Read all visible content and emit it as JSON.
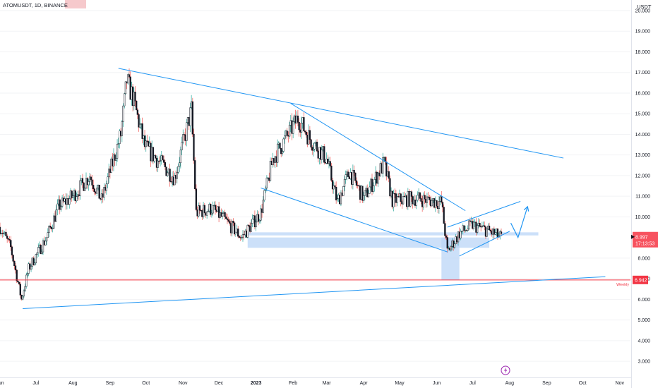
{
  "header": {
    "symbol": "ATOMUSDT",
    "interval": "1D",
    "exchange": "BINANCE",
    "title": "ATOMUSDT, 1D, BINANCE"
  },
  "price_axis": {
    "unit": "USDT",
    "ticks": [
      "20.000",
      "19.000",
      "18.000",
      "17.000",
      "16.000",
      "15.000",
      "14.000",
      "13.000",
      "12.000",
      "11.000",
      "10.000",
      "8.000",
      "7.000",
      "6.000",
      "5.000",
      "4.000",
      "3.000"
    ]
  },
  "time_axis": {
    "ticks": [
      "Jun",
      "Jul",
      "Aug",
      "Sep",
      "Oct",
      "Nov",
      "Dec",
      "2023",
      "Feb",
      "Mar",
      "Apr",
      "May",
      "Jun",
      "Jul",
      "Aug",
      "Sep",
      "Oct",
      "Nov"
    ]
  },
  "price_labels": {
    "last_price": "8.997",
    "countdown": "17:13:53",
    "weekly_level": "6.942",
    "weekly_text": "Weekly"
  },
  "colors": {
    "up": "#26a69a",
    "down": "#ef5350",
    "candle_body": "#131722",
    "drawing": "#2196f3",
    "zone": "#bbd6f7",
    "level": "#f23645"
  },
  "chart_data": {
    "type": "candlestick",
    "symbol": "ATOMUSDT",
    "interval": "1D",
    "exchange": "BINANCE",
    "y_unit": "USDT",
    "ylim": [
      2.8,
      20.4
    ],
    "x_range": [
      "2022-06-01",
      "2023-11-10"
    ],
    "close_path": [
      {
        "date": "2022-06-01",
        "close": 9.5
      },
      {
        "date": "2022-06-10",
        "close": 8.5
      },
      {
        "date": "2022-06-19",
        "close": 6.0
      },
      {
        "date": "2022-06-25",
        "close": 7.5
      },
      {
        "date": "2022-07-10",
        "close": 9.0
      },
      {
        "date": "2022-07-20",
        "close": 10.5
      },
      {
        "date": "2022-08-01",
        "close": 11.0
      },
      {
        "date": "2022-08-15",
        "close": 12.0
      },
      {
        "date": "2022-08-25",
        "close": 10.8
      },
      {
        "date": "2022-09-10",
        "close": 14.0
      },
      {
        "date": "2022-09-15",
        "close": 16.6
      },
      {
        "date": "2022-09-20",
        "close": 15.8
      },
      {
        "date": "2022-09-30",
        "close": 13.4
      },
      {
        "date": "2022-10-10",
        "close": 12.8
      },
      {
        "date": "2022-10-25",
        "close": 11.9
      },
      {
        "date": "2022-11-08",
        "close": 15.2
      },
      {
        "date": "2022-11-12",
        "close": 10.2
      },
      {
        "date": "2022-11-25",
        "close": 10.4
      },
      {
        "date": "2022-12-05",
        "close": 9.9
      },
      {
        "date": "2022-12-20",
        "close": 9.0
      },
      {
        "date": "2023-01-05",
        "close": 10.2
      },
      {
        "date": "2023-01-15",
        "close": 12.8
      },
      {
        "date": "2023-01-28",
        "close": 14.0
      },
      {
        "date": "2023-02-05",
        "close": 14.8
      },
      {
        "date": "2023-02-15",
        "close": 13.8
      },
      {
        "date": "2023-03-01",
        "close": 12.8
      },
      {
        "date": "2023-03-10",
        "close": 10.7
      },
      {
        "date": "2023-03-20",
        "close": 12.2
      },
      {
        "date": "2023-04-01",
        "close": 10.9
      },
      {
        "date": "2023-04-18",
        "close": 12.6
      },
      {
        "date": "2023-04-25",
        "close": 10.8
      },
      {
        "date": "2023-05-15",
        "close": 10.9
      },
      {
        "date": "2023-06-05",
        "close": 10.7
      },
      {
        "date": "2023-06-10",
        "close": 8.3
      },
      {
        "date": "2023-06-20",
        "close": 9.2
      },
      {
        "date": "2023-07-01",
        "close": 9.6
      },
      {
        "date": "2023-07-15",
        "close": 9.3
      },
      {
        "date": "2023-07-25",
        "close": 9.0
      }
    ],
    "drawings": [
      {
        "kind": "trendline",
        "from": {
          "date": "2022-09-08",
          "price": 17.2
        },
        "to": {
          "date": "2023-09-15",
          "price": 12.85
        }
      },
      {
        "kind": "trendline",
        "from": {
          "date": "2022-06-20",
          "price": 5.55
        },
        "to": {
          "date": "2023-10-20",
          "price": 7.1
        }
      },
      {
        "kind": "trendline",
        "from": {
          "date": "2023-01-30",
          "price": 15.5
        },
        "to": {
          "date": "2023-06-25",
          "price": 10.3
        }
      },
      {
        "kind": "trendline",
        "from": {
          "date": "2023-01-05",
          "price": 11.4
        },
        "to": {
          "date": "2023-06-10",
          "price": 8.3
        }
      },
      {
        "kind": "trendline",
        "from": {
          "date": "2023-06-10",
          "price": 9.5
        },
        "to": {
          "date": "2023-08-10",
          "price": 10.75
        }
      },
      {
        "kind": "trendline",
        "from": {
          "date": "2023-06-20",
          "price": 8.1
        },
        "to": {
          "date": "2023-08-01",
          "price": 9.3
        }
      },
      {
        "kind": "zone",
        "from": {
          "date": "2022-12-25",
          "price": 9.25
        },
        "to": {
          "date": "2023-08-25",
          "price": 9.1
        }
      },
      {
        "kind": "zone",
        "from": {
          "date": "2022-12-25",
          "price": 9.0
        },
        "to": {
          "date": "2023-07-15",
          "price": 8.5
        }
      },
      {
        "kind": "zone",
        "from": {
          "date": "2023-06-05",
          "price": 9.0
        },
        "to": {
          "date": "2023-06-20",
          "price": 6.95
        }
      },
      {
        "kind": "hline",
        "price": 6.942
      },
      {
        "kind": "projection_arrow",
        "points": [
          {
            "date": "2023-08-02",
            "price": 9.7
          },
          {
            "date": "2023-08-08",
            "price": 9.0
          },
          {
            "date": "2023-08-16",
            "price": 10.5
          }
        ]
      }
    ]
  }
}
